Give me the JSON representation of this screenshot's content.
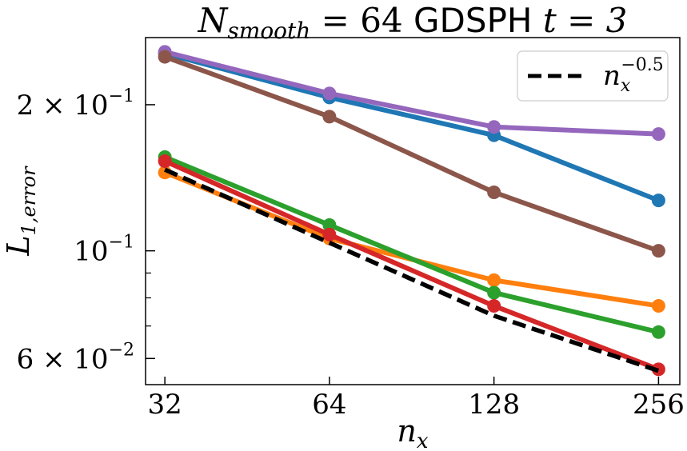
{
  "chart_data": {
    "type": "line",
    "title": {
      "part1_main": "N",
      "part1_sub": "smooth",
      "part2": " = 64 ",
      "part3": "GDSPH",
      "part4": " t = 3"
    },
    "xlabel": {
      "main": "n",
      "sub": "x"
    },
    "ylabel": {
      "main": "L",
      "sub": "1,error"
    },
    "x_scale": "log2",
    "y_scale": "log10",
    "x": [
      32,
      64,
      128,
      256
    ],
    "xlim": [
      29.5,
      280
    ],
    "ylim": [
      0.053,
      0.275
    ],
    "x_tick_labels": [
      "32",
      "64",
      "128",
      "256"
    ],
    "y_tick_labels": [
      {
        "value": 0.2,
        "base": "2 × 10",
        "exp": "−1"
      },
      {
        "value": 0.1,
        "base": "10",
        "exp": "−1"
      },
      {
        "value": 0.06,
        "base": "6 × 10",
        "exp": "−2"
      }
    ],
    "y_minor_ticks": [
      0.07,
      0.08,
      0.09
    ],
    "series": [
      {
        "name": "blue",
        "color": "#1f77b4",
        "values": [
          0.255,
          0.207,
          0.173,
          0.127
        ]
      },
      {
        "name": "orange",
        "color": "#ff7f0e",
        "values": [
          0.145,
          0.106,
          0.087,
          0.077
        ]
      },
      {
        "name": "green",
        "color": "#2ca02c",
        "values": [
          0.156,
          0.113,
          0.082,
          0.068
        ]
      },
      {
        "name": "red",
        "color": "#d62728",
        "values": [
          0.153,
          0.108,
          0.077,
          0.057
        ]
      },
      {
        "name": "purple",
        "color": "#9467bd",
        "values": [
          0.257,
          0.211,
          0.18,
          0.174
        ]
      },
      {
        "name": "brown",
        "color": "#8c564b",
        "values": [
          0.251,
          0.189,
          0.132,
          0.1
        ]
      }
    ],
    "reference": {
      "color": "#000000",
      "style": "dashed",
      "values": [
        0.147,
        0.1039,
        0.0735,
        0.0566
      ],
      "label": {
        "main": "n",
        "sub": "x",
        "sup": "−0.5"
      }
    },
    "legend": {
      "position": "top-right"
    }
  }
}
